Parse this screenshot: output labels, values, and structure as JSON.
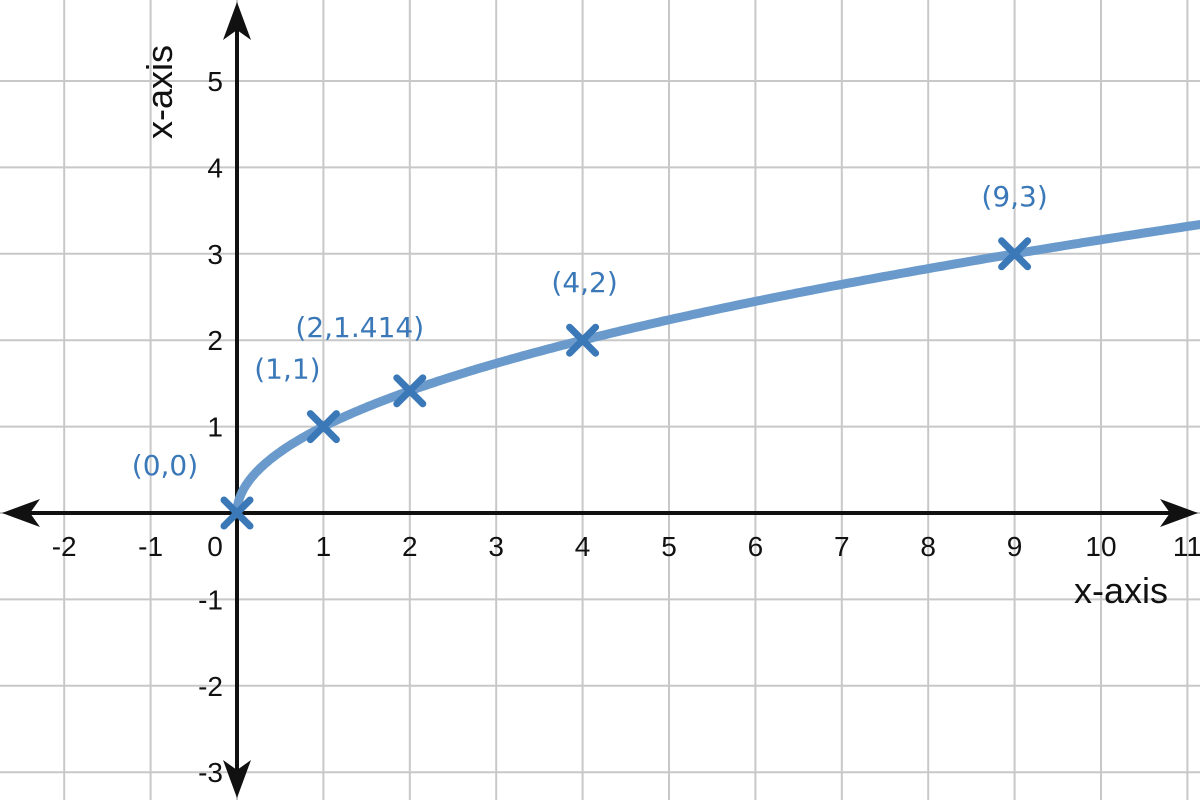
{
  "chart_data": {
    "type": "line",
    "function": "y = sqrt(x)",
    "xlabel": "x-axis",
    "ylabel": "x-axis",
    "xlim": [
      -2.75,
      11.2
    ],
    "ylim": [
      -3.3,
      5.95
    ],
    "x_ticks": [
      -2,
      -1,
      0,
      1,
      2,
      3,
      4,
      5,
      6,
      7,
      8,
      9,
      10,
      11
    ],
    "y_ticks": [
      -3,
      -2,
      -1,
      1,
      2,
      3,
      4,
      5
    ],
    "grid": true,
    "series": [
      {
        "x_start": 0,
        "x_end": 11.2,
        "color": "#6a9acb"
      }
    ],
    "points": [
      {
        "x": 0,
        "y": 0,
        "label": "(0,0)"
      },
      {
        "x": 1,
        "y": 1,
        "label": "(1,1)"
      },
      {
        "x": 2,
        "y": 1.414,
        "label": "(2,1.414)"
      },
      {
        "x": 4,
        "y": 2,
        "label": "(4,2)"
      },
      {
        "x": 9,
        "y": 3,
        "label": "(9,3)"
      }
    ],
    "marker_color": "#3a78b8",
    "grid_color": "#c8c8c8",
    "axis_color": "#111111"
  }
}
